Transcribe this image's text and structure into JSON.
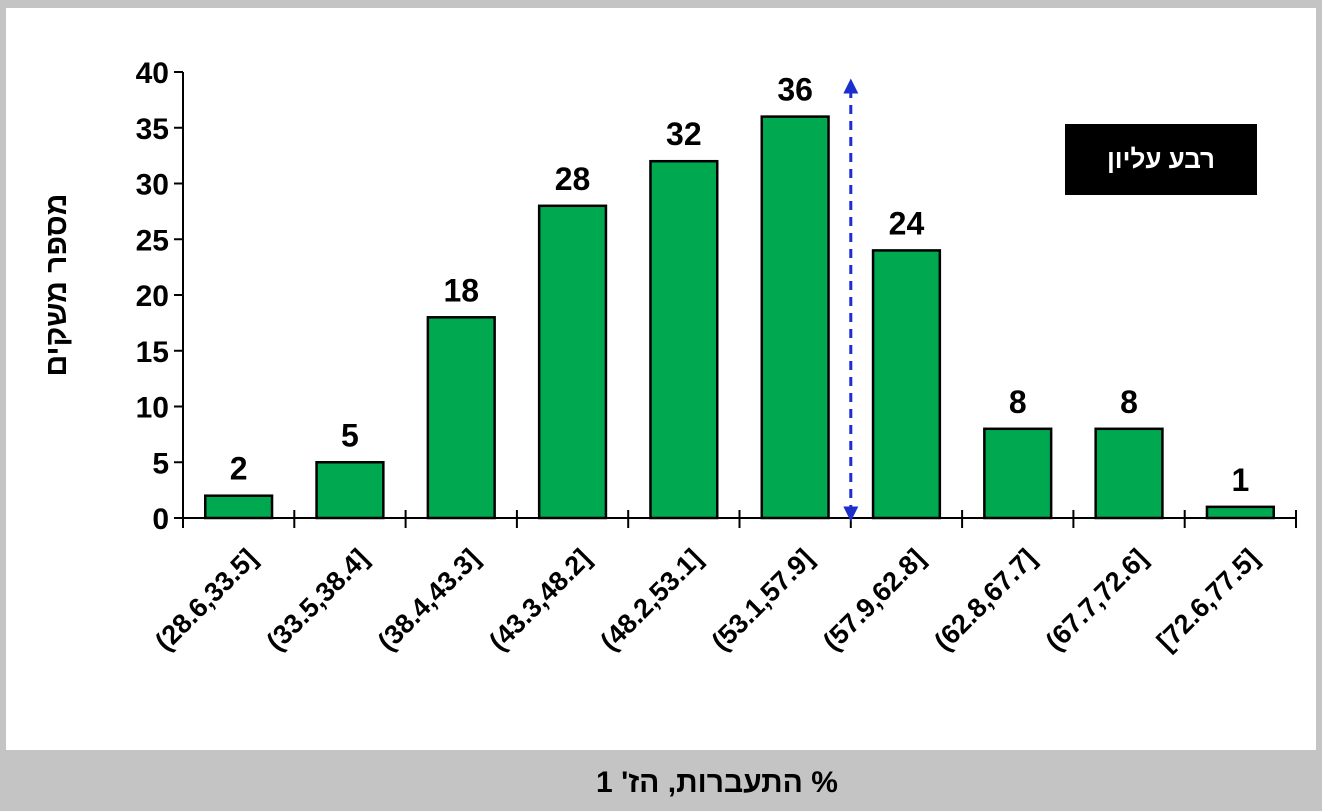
{
  "chart_data": {
    "type": "bar",
    "categories": [
      "(28.6,33.5]",
      "(33.5,38.4]",
      "(38.4,43.3]",
      "(43.3,48.2]",
      "(48.2,53.1]",
      "(53.1,57.9]",
      "(57.9,62.8]",
      "(62.8,67.7]",
      "(67.7,72.6]",
      "[72.6,77.5]"
    ],
    "values": [
      2,
      5,
      18,
      28,
      32,
      36,
      24,
      8,
      8,
      1
    ],
    "xlabel": "% התעברות, הז' 1",
    "ylabel": "מספר משקים",
    "ylim": [
      0,
      40
    ],
    "yticks": [
      0,
      5,
      10,
      15,
      20,
      25,
      30,
      35,
      40
    ],
    "grid": false,
    "bar_color": "#00a84f",
    "bar_edge_color": "#000000",
    "annotation": {
      "text": "רבע עליון",
      "background": "#000000",
      "text_color": "#ffffff"
    },
    "marker": {
      "type": "dashed-double-arrow",
      "between_categories": [
        "(53.1,57.9]",
        "(57.9,62.8]"
      ],
      "from": 0,
      "to": 40,
      "color": "#1a2fcc"
    }
  }
}
